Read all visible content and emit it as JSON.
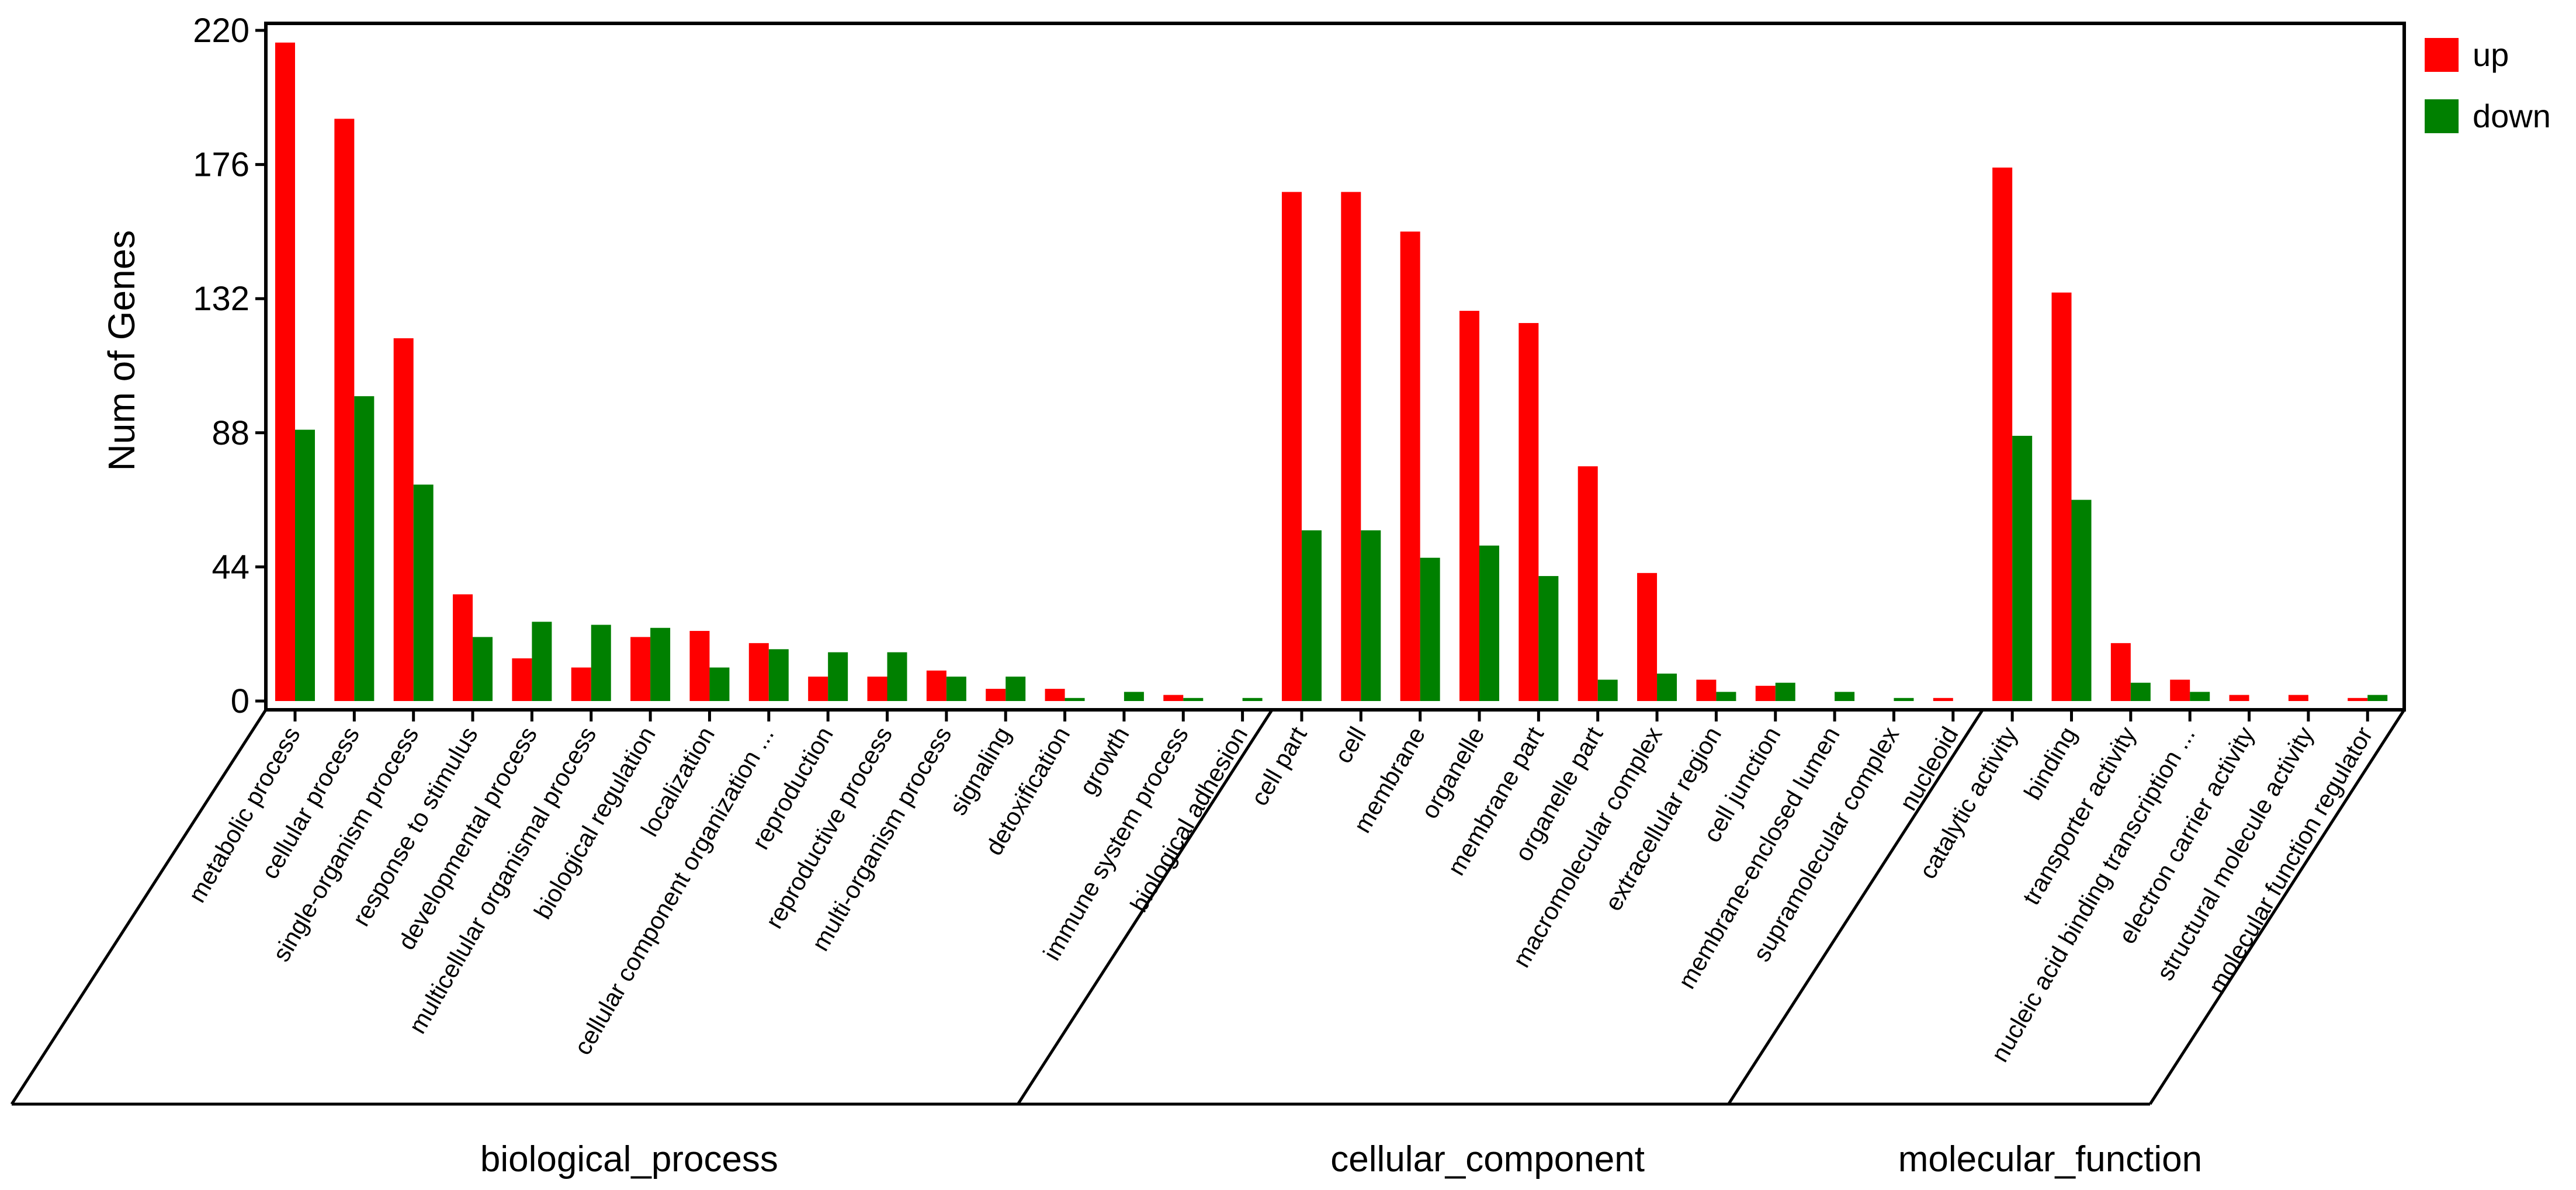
{
  "chart_data": {
    "type": "bar",
    "title": "",
    "xlabel": "",
    "ylabel": "Num of Genes",
    "ylim": [
      0,
      220
    ],
    "yticks": [
      0,
      44,
      88,
      132,
      176,
      220
    ],
    "grid": false,
    "legend_position": "top-right",
    "colors": {
      "up": "#ff0000",
      "down": "#008000"
    },
    "categories": [
      "metabolic process",
      "cellular process",
      "single-organism process",
      "response to stimulus",
      "developmental process",
      "multicellular organismal process",
      "biological regulation",
      "localization",
      "cellular component organization ...",
      "reproduction",
      "reproductive process",
      "multi-organism process",
      "signaling",
      "detoxification",
      "growth",
      "immune system process",
      "biological adhesion",
      "cell part",
      "cell",
      "membrane",
      "organelle",
      "membrane part",
      "organelle part",
      "macromolecular complex",
      "extracellular region",
      "cell junction",
      "membrane-enclosed lumen",
      "supramolecular complex",
      "nucleoid",
      "catalytic activity",
      "binding",
      "transporter activity",
      "nucleic acid binding transcription ...",
      "electron carrier activity",
      "structural molecule activity",
      "molecular function regulator"
    ],
    "series": [
      {
        "name": "up",
        "values": [
          216,
          191,
          119,
          35,
          14,
          11,
          21,
          23,
          19,
          8,
          8,
          10,
          4,
          4,
          0,
          2,
          0,
          167,
          167,
          154,
          128,
          124,
          77,
          42,
          7,
          5,
          0,
          0,
          1,
          175,
          134,
          19,
          7,
          2,
          2,
          1
        ]
      },
      {
        "name": "down",
        "values": [
          89,
          100,
          71,
          21,
          26,
          25,
          24,
          11,
          17,
          16,
          16,
          8,
          8,
          1,
          3,
          1,
          1,
          56,
          56,
          47,
          51,
          41,
          7,
          9,
          3,
          6,
          3,
          1,
          0,
          87,
          66,
          6,
          3,
          0,
          0,
          2
        ]
      }
    ],
    "groups": [
      {
        "label": "biological_process",
        "count": 17
      },
      {
        "label": "cellular_component",
        "count": 12
      },
      {
        "label": "molecular_function",
        "count": 7
      }
    ]
  }
}
